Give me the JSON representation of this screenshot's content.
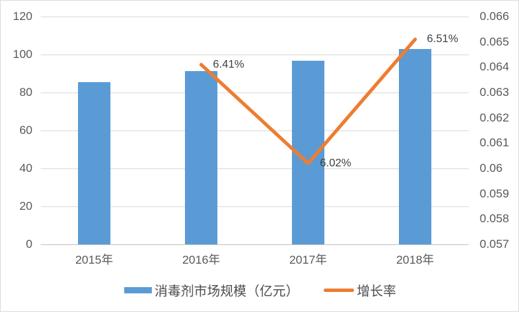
{
  "chart_data": {
    "type": "combo",
    "categories": [
      "2015年",
      "2016年",
      "2017年",
      "2018年"
    ],
    "series": [
      {
        "name": "消毒剂市场规模（亿元）",
        "type": "bar",
        "axis": "left",
        "color": "#5b9bd5",
        "values": [
          85.6,
          91.1,
          96.6,
          102.9
        ]
      },
      {
        "name": "增长率",
        "type": "line",
        "axis": "right",
        "color": "#ed7d31",
        "values": [
          null,
          0.0641,
          0.0602,
          0.0651
        ],
        "point_labels": [
          null,
          "6.41%",
          "6.02%",
          "6.51%"
        ]
      }
    ],
    "left_axis": {
      "min": 0,
      "max": 120,
      "step": 20,
      "ticks": [
        "120",
        "100",
        "80",
        "60",
        "40",
        "20",
        "0"
      ]
    },
    "right_axis": {
      "min": 0.057,
      "max": 0.066,
      "step": 0.001,
      "ticks": [
        "0.066",
        "0.065",
        "0.064",
        "0.063",
        "0.062",
        "0.061",
        "0.06",
        "0.059",
        "0.058",
        "0.057"
      ]
    },
    "grid": true,
    "legend_position": "bottom",
    "title": ""
  },
  "colors": {
    "bar": "#5b9bd5",
    "line": "#ed7d31",
    "gridline": "#d9d9d9",
    "axis_line": "#c2c2c2",
    "tick_text": "#595959",
    "data_label_text": "#404040",
    "background": "#ffffff"
  }
}
